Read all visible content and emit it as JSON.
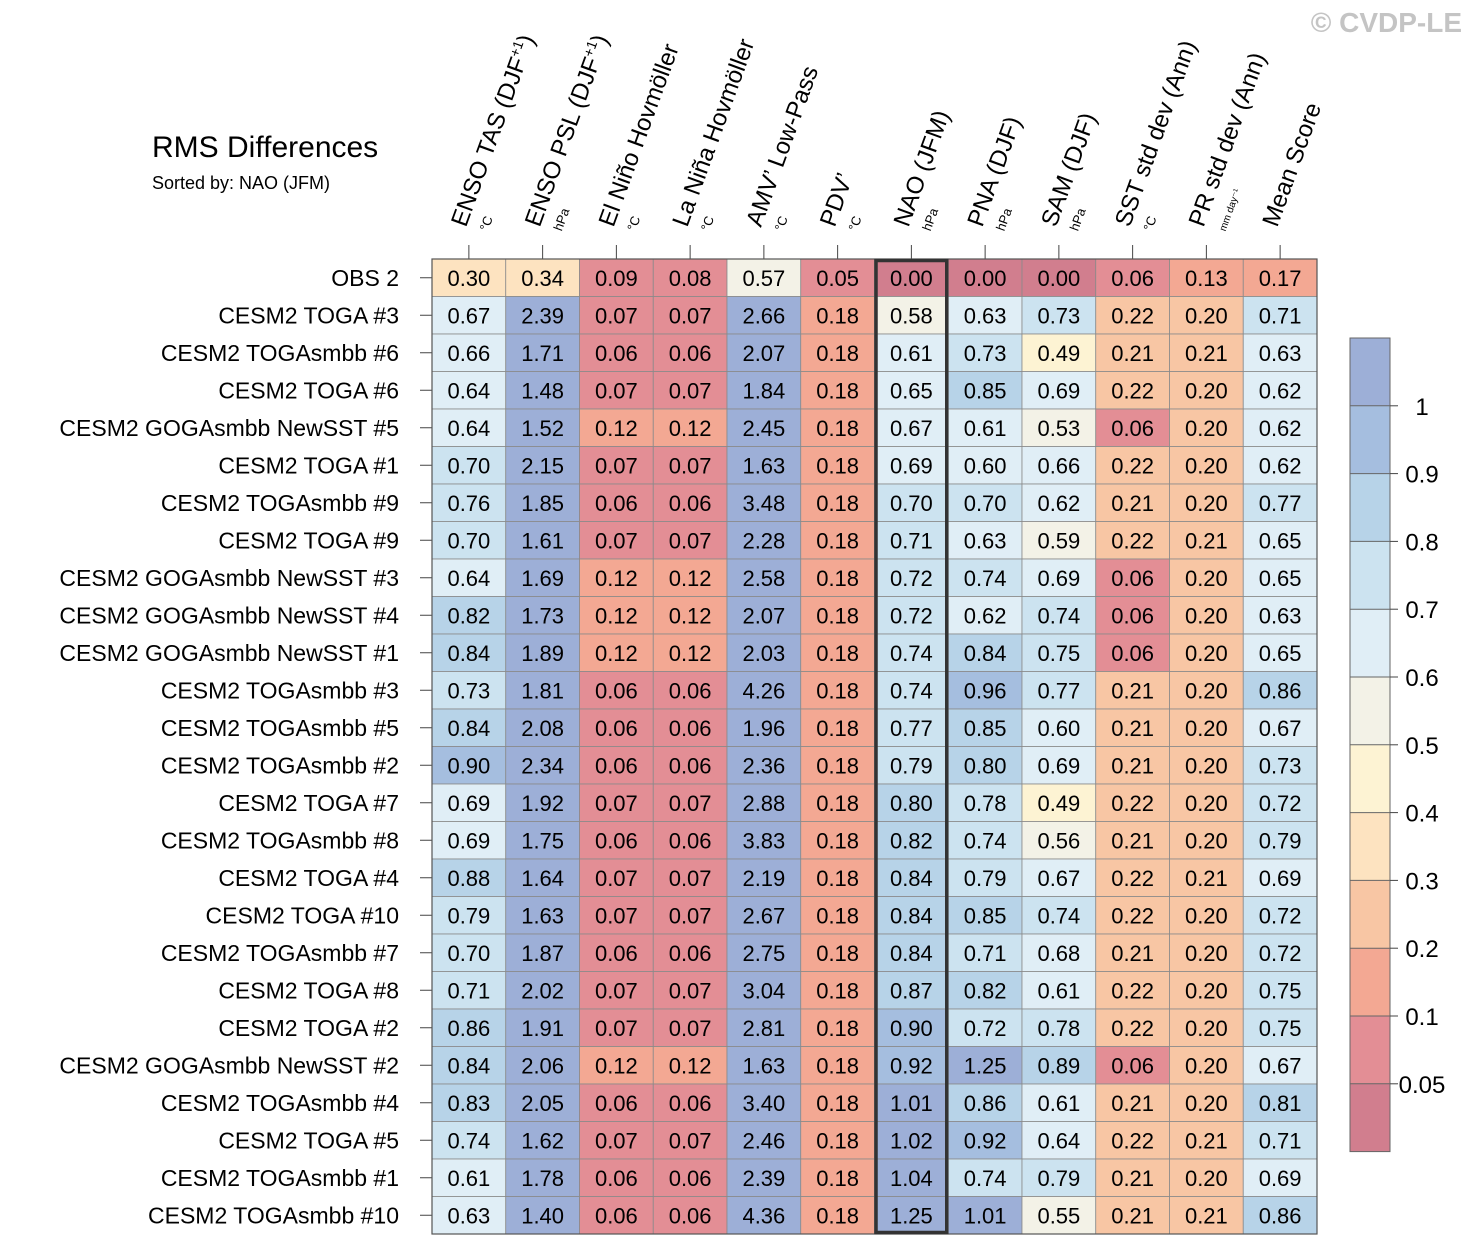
{
  "watermark": "© CVDP-LE",
  "chart_data": {
    "type": "table",
    "title": "RMS Differences",
    "subtitle": "Sorted by: NAO (JFM)",
    "highlighted_column": "NAO (JFM)",
    "columns": [
      {
        "label": "ENSO TAS (DJF",
        "sup": "+1",
        "tail": ")",
        "unit": "°C"
      },
      {
        "label": "ENSO PSL (DJF",
        "sup": "+1",
        "tail": ")",
        "unit": "hPa"
      },
      {
        "label": "El Niño Hovmöller",
        "sup": "",
        "tail": "",
        "unit": "°C"
      },
      {
        "label": "La Niña Hovmöller",
        "sup": "",
        "tail": "",
        "unit": "°C"
      },
      {
        "label": "AMV’ Low-Pass",
        "sup": "",
        "tail": "",
        "unit": "°C"
      },
      {
        "label": "PDV’",
        "sup": "",
        "tail": "",
        "unit": "°C"
      },
      {
        "label": "NAO (JFM)",
        "sup": "",
        "tail": "",
        "unit": "hPa"
      },
      {
        "label": "PNA (DJF)",
        "sup": "",
        "tail": "",
        "unit": "hPa"
      },
      {
        "label": "SAM (DJF)",
        "sup": "",
        "tail": "",
        "unit": "hPa"
      },
      {
        "label": "SST std dev (Ann)",
        "sup": "",
        "tail": "",
        "unit": "°C"
      },
      {
        "label": "PR std dev (Ann)",
        "sup": "",
        "tail": "",
        "unit": "mm day⁻¹"
      },
      {
        "label": "Mean Score",
        "sup": "",
        "tail": "",
        "unit": ""
      }
    ],
    "rows": [
      {
        "name": "OBS 2",
        "values": [
          "0.30",
          "0.34",
          "0.09",
          "0.08",
          "0.57",
          "0.05",
          "0.00",
          "0.00",
          "0.00",
          "0.06",
          "0.13",
          "0.17"
        ]
      },
      {
        "name": "CESM2 TOGA #3",
        "values": [
          "0.67",
          "2.39",
          "0.07",
          "0.07",
          "2.66",
          "0.18",
          "0.58",
          "0.63",
          "0.73",
          "0.22",
          "0.20",
          "0.71"
        ]
      },
      {
        "name": "CESM2 TOGAsmbb #6",
        "values": [
          "0.66",
          "1.71",
          "0.06",
          "0.06",
          "2.07",
          "0.18",
          "0.61",
          "0.73",
          "0.49",
          "0.21",
          "0.21",
          "0.63"
        ]
      },
      {
        "name": "CESM2 TOGA #6",
        "values": [
          "0.64",
          "1.48",
          "0.07",
          "0.07",
          "1.84",
          "0.18",
          "0.65",
          "0.85",
          "0.69",
          "0.22",
          "0.20",
          "0.62"
        ]
      },
      {
        "name": "CESM2 GOGAsmbb NewSST #5",
        "values": [
          "0.64",
          "1.52",
          "0.12",
          "0.12",
          "2.45",
          "0.18",
          "0.67",
          "0.61",
          "0.53",
          "0.06",
          "0.20",
          "0.62"
        ]
      },
      {
        "name": "CESM2 TOGA #1",
        "values": [
          "0.70",
          "2.15",
          "0.07",
          "0.07",
          "1.63",
          "0.18",
          "0.69",
          "0.60",
          "0.66",
          "0.22",
          "0.20",
          "0.62"
        ]
      },
      {
        "name": "CESM2 TOGAsmbb #9",
        "values": [
          "0.76",
          "1.85",
          "0.06",
          "0.06",
          "3.48",
          "0.18",
          "0.70",
          "0.70",
          "0.62",
          "0.21",
          "0.20",
          "0.77"
        ]
      },
      {
        "name": "CESM2 TOGA #9",
        "values": [
          "0.70",
          "1.61",
          "0.07",
          "0.07",
          "2.28",
          "0.18",
          "0.71",
          "0.63",
          "0.59",
          "0.22",
          "0.21",
          "0.65"
        ]
      },
      {
        "name": "CESM2 GOGAsmbb NewSST #3",
        "values": [
          "0.64",
          "1.69",
          "0.12",
          "0.12",
          "2.58",
          "0.18",
          "0.72",
          "0.74",
          "0.69",
          "0.06",
          "0.20",
          "0.65"
        ]
      },
      {
        "name": "CESM2 GOGAsmbb NewSST #4",
        "values": [
          "0.82",
          "1.73",
          "0.12",
          "0.12",
          "2.07",
          "0.18",
          "0.72",
          "0.62",
          "0.74",
          "0.06",
          "0.20",
          "0.63"
        ]
      },
      {
        "name": "CESM2 GOGAsmbb NewSST #1",
        "values": [
          "0.84",
          "1.89",
          "0.12",
          "0.12",
          "2.03",
          "0.18",
          "0.74",
          "0.84",
          "0.75",
          "0.06",
          "0.20",
          "0.65"
        ]
      },
      {
        "name": "CESM2 TOGAsmbb #3",
        "values": [
          "0.73",
          "1.81",
          "0.06",
          "0.06",
          "4.26",
          "0.18",
          "0.74",
          "0.96",
          "0.77",
          "0.21",
          "0.20",
          "0.86"
        ]
      },
      {
        "name": "CESM2 TOGAsmbb #5",
        "values": [
          "0.84",
          "2.08",
          "0.06",
          "0.06",
          "1.96",
          "0.18",
          "0.77",
          "0.85",
          "0.60",
          "0.21",
          "0.20",
          "0.67"
        ]
      },
      {
        "name": "CESM2 TOGAsmbb #2",
        "values": [
          "0.90",
          "2.34",
          "0.06",
          "0.06",
          "2.36",
          "0.18",
          "0.79",
          "0.80",
          "0.69",
          "0.21",
          "0.20",
          "0.73"
        ]
      },
      {
        "name": "CESM2 TOGA #7",
        "values": [
          "0.69",
          "1.92",
          "0.07",
          "0.07",
          "2.88",
          "0.18",
          "0.80",
          "0.78",
          "0.49",
          "0.22",
          "0.20",
          "0.72"
        ]
      },
      {
        "name": "CESM2 TOGAsmbb #8",
        "values": [
          "0.69",
          "1.75",
          "0.06",
          "0.06",
          "3.83",
          "0.18",
          "0.82",
          "0.74",
          "0.56",
          "0.21",
          "0.20",
          "0.79"
        ]
      },
      {
        "name": "CESM2 TOGA #4",
        "values": [
          "0.88",
          "1.64",
          "0.07",
          "0.07",
          "2.19",
          "0.18",
          "0.84",
          "0.79",
          "0.67",
          "0.22",
          "0.21",
          "0.69"
        ]
      },
      {
        "name": "CESM2 TOGA #10",
        "values": [
          "0.79",
          "1.63",
          "0.07",
          "0.07",
          "2.67",
          "0.18",
          "0.84",
          "0.85",
          "0.74",
          "0.22",
          "0.20",
          "0.72"
        ]
      },
      {
        "name": "CESM2 TOGAsmbb #7",
        "values": [
          "0.70",
          "1.87",
          "0.06",
          "0.06",
          "2.75",
          "0.18",
          "0.84",
          "0.71",
          "0.68",
          "0.21",
          "0.20",
          "0.72"
        ]
      },
      {
        "name": "CESM2 TOGA #8",
        "values": [
          "0.71",
          "2.02",
          "0.07",
          "0.07",
          "3.04",
          "0.18",
          "0.87",
          "0.82",
          "0.61",
          "0.22",
          "0.20",
          "0.75"
        ]
      },
      {
        "name": "CESM2 TOGA #2",
        "values": [
          "0.86",
          "1.91",
          "0.07",
          "0.07",
          "2.81",
          "0.18",
          "0.90",
          "0.72",
          "0.78",
          "0.22",
          "0.20",
          "0.75"
        ]
      },
      {
        "name": "CESM2 GOGAsmbb NewSST #2",
        "values": [
          "0.84",
          "2.06",
          "0.12",
          "0.12",
          "1.63",
          "0.18",
          "0.92",
          "1.25",
          "0.89",
          "0.06",
          "0.20",
          "0.67"
        ]
      },
      {
        "name": "CESM2 TOGAsmbb #4",
        "values": [
          "0.83",
          "2.05",
          "0.06",
          "0.06",
          "3.40",
          "0.18",
          "1.01",
          "0.86",
          "0.61",
          "0.21",
          "0.20",
          "0.81"
        ]
      },
      {
        "name": "CESM2 TOGA #5",
        "values": [
          "0.74",
          "1.62",
          "0.07",
          "0.07",
          "2.46",
          "0.18",
          "1.02",
          "0.92",
          "0.64",
          "0.22",
          "0.21",
          "0.71"
        ]
      },
      {
        "name": "CESM2 TOGAsmbb #1",
        "values": [
          "0.61",
          "1.78",
          "0.06",
          "0.06",
          "2.39",
          "0.18",
          "1.04",
          "0.74",
          "0.79",
          "0.21",
          "0.20",
          "0.69"
        ]
      },
      {
        "name": "CESM2 TOGAsmbb #10",
        "values": [
          "0.63",
          "1.40",
          "0.06",
          "0.06",
          "4.36",
          "0.18",
          "1.25",
          "1.01",
          "0.55",
          "0.21",
          "0.21",
          "0.86"
        ]
      }
    ],
    "colorbar": {
      "bounds": [
        0.05,
        0.1,
        0.2,
        0.3,
        0.4,
        0.5,
        0.6,
        0.7,
        0.8,
        0.9,
        1
      ],
      "labels": [
        "0.05",
        "0.1",
        "0.2",
        "0.3",
        "0.4",
        "0.5",
        "0.6",
        "0.7",
        "0.8",
        "0.9",
        "1"
      ],
      "colors": [
        "#d17e8e",
        "#e38e95",
        "#f3a893",
        "#f8c6a4",
        "#fde3c0",
        "#fdf3d3",
        "#f3f2e7",
        "#e0eef6",
        "#cce3f0",
        "#b7d3e8",
        "#a5bedf",
        "#9dafd7"
      ]
    }
  }
}
